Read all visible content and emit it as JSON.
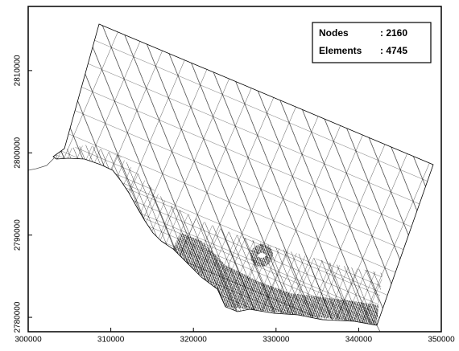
{
  "chart_data": {
    "type": "mesh",
    "xlim": [
      300000,
      350000
    ],
    "ylim": [
      2778250,
      2817800
    ],
    "xticks": [
      300000,
      310000,
      320000,
      330000,
      340000,
      350000
    ],
    "yticks": [
      2780000,
      2790000,
      2800000,
      2810000
    ],
    "info": [
      {
        "label": "Nodes",
        "value": ": 2160"
      },
      {
        "label": "Elements",
        "value": ": 4745"
      }
    ]
  }
}
